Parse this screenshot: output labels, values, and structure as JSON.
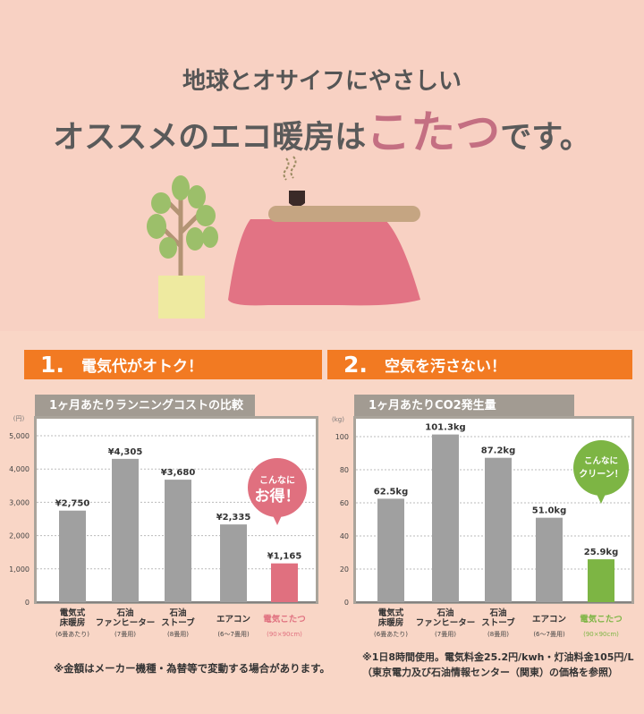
{
  "header": {
    "line1": "地球とオサイフにやさしい",
    "line2_before": "オススメのエコ暖房は",
    "line2_highlight": "こたつ",
    "line2_after": "です。"
  },
  "colors": {
    "background": "#f9d6c6",
    "banner": "#f27a22",
    "bar": "#a0a0a0",
    "kotatsu": "#e0707f",
    "green": "#7db544",
    "highlight_text": "#c46f82"
  },
  "sections": [
    {
      "number": "1.",
      "title": "電気代がオトク！"
    },
    {
      "number": "2.",
      "title": "空気を汚さない！"
    }
  ],
  "chart_data": [
    {
      "type": "bar",
      "title": "1ヶ月あたりランニングコストの比較",
      "unit": "(円)",
      "ylim": [
        0,
        5000
      ],
      "yticks": [
        "0",
        "1,000",
        "2,000",
        "3,000",
        "4,000",
        "5,000"
      ],
      "ytick_values": [
        0,
        1000,
        2000,
        3000,
        4000,
        5000
      ],
      "grid": true,
      "categories": [
        {
          "name": [
            "電気式",
            "床暖房"
          ],
          "sub": "(6畳あたり)"
        },
        {
          "name": [
            "石油",
            "ファンヒーター"
          ],
          "sub": "(7畳用)"
        },
        {
          "name": [
            "石油",
            "ストーブ"
          ],
          "sub": "(8畳用)"
        },
        {
          "name": [
            "エアコン"
          ],
          "sub": "(6〜7畳用)"
        },
        {
          "name": [
            "電気こたつ"
          ],
          "sub": "(90×90cm)"
        }
      ],
      "values": [
        2750,
        4305,
        3680,
        2335,
        1165
      ],
      "data_labels": [
        "¥2,750",
        "¥4,305",
        "¥3,680",
        "¥2,335",
        "¥1,165"
      ],
      "highlight_index": 4,
      "highlight_color": "#e0707f",
      "callout": [
        "こんなに",
        "お得！"
      ]
    },
    {
      "type": "bar",
      "title": "1ヶ月あたりCO2発生量",
      "unit": "(kg)",
      "ylim": [
        0,
        100
      ],
      "yticks": [
        "0",
        "20",
        "40",
        "60",
        "80",
        "100"
      ],
      "ytick_values": [
        0,
        20,
        40,
        60,
        80,
        100
      ],
      "grid": true,
      "categories": [
        {
          "name": [
            "電気式",
            "床暖房"
          ],
          "sub": "(6畳あたり)"
        },
        {
          "name": [
            "石油",
            "ファンヒーター"
          ],
          "sub": "(7畳用)"
        },
        {
          "name": [
            "石油",
            "ストーブ"
          ],
          "sub": "(8畳用)"
        },
        {
          "name": [
            "エアコン"
          ],
          "sub": "(6〜7畳用)"
        },
        {
          "name": [
            "電気こたつ"
          ],
          "sub": "(90×90cm)"
        }
      ],
      "values": [
        62.5,
        101.3,
        87.2,
        51.0,
        25.9
      ],
      "data_labels": [
        "62.5kg",
        "101.3kg",
        "87.2kg",
        "51.0kg",
        "25.9kg"
      ],
      "highlight_index": 4,
      "highlight_color": "#7db544",
      "callout": [
        "こんなに",
        "クリーン！"
      ]
    }
  ],
  "notes": {
    "left": "※金額はメーカー機種・為替等で変動する場合があります。",
    "right_line1": "※1日8時間使用。電気料金25.2円/kwh・灯油料金105円/L",
    "right_line2": "（東京電力及び石油情報センター（関東）の価格を参照）"
  }
}
